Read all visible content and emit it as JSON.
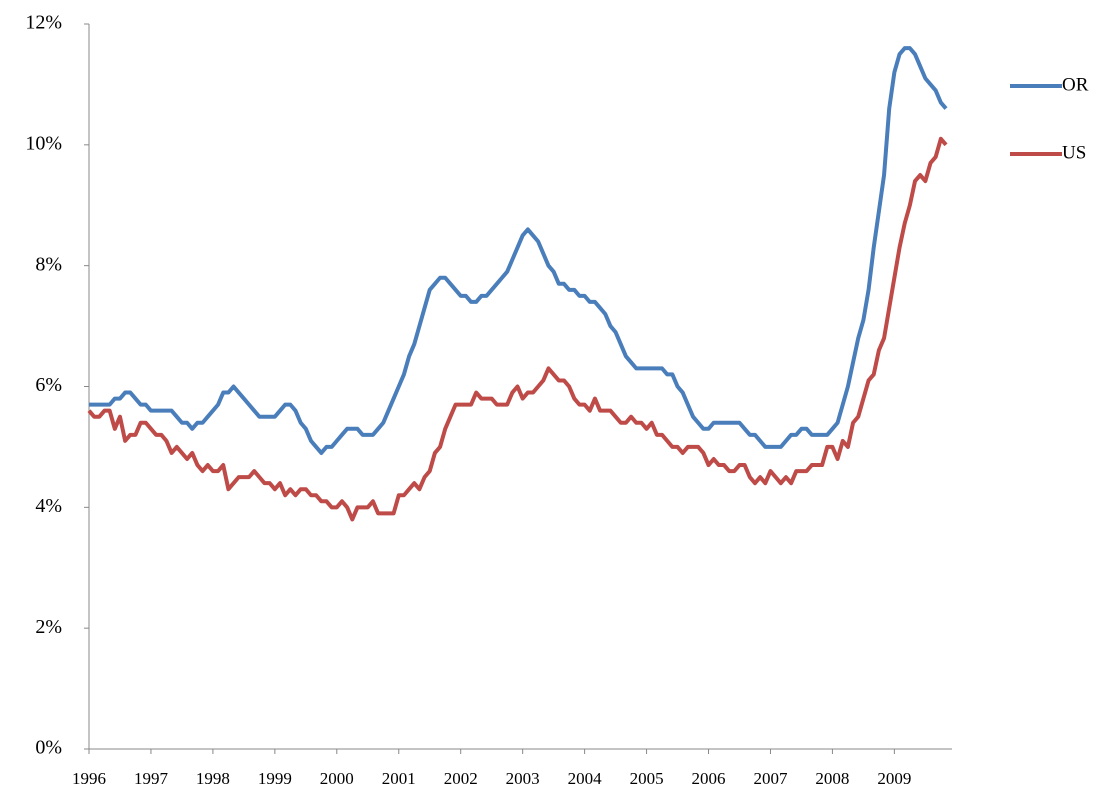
{
  "chart_data": {
    "type": "line",
    "categories": [
      "1996",
      null,
      null,
      null,
      null,
      null,
      null,
      null,
      null,
      null,
      null,
      null,
      "1997",
      null,
      null,
      null,
      null,
      null,
      null,
      null,
      null,
      null,
      null,
      null,
      "1998",
      null,
      null,
      null,
      null,
      null,
      null,
      null,
      null,
      null,
      null,
      null,
      "1999",
      null,
      null,
      null,
      null,
      null,
      null,
      null,
      null,
      null,
      null,
      null,
      "2000",
      null,
      null,
      null,
      null,
      null,
      null,
      null,
      null,
      null,
      null,
      null,
      "2001",
      null,
      null,
      null,
      null,
      null,
      null,
      null,
      null,
      null,
      null,
      null,
      "2002",
      null,
      null,
      null,
      null,
      null,
      null,
      null,
      null,
      null,
      null,
      null,
      "2003",
      null,
      null,
      null,
      null,
      null,
      null,
      null,
      null,
      null,
      null,
      null,
      "2004",
      null,
      null,
      null,
      null,
      null,
      null,
      null,
      null,
      null,
      null,
      null,
      "2005",
      null,
      null,
      null,
      null,
      null,
      null,
      null,
      null,
      null,
      null,
      null,
      "2006",
      null,
      null,
      null,
      null,
      null,
      null,
      null,
      null,
      null,
      null,
      null,
      "2007",
      null,
      null,
      null,
      null,
      null,
      null,
      null,
      null,
      null,
      null,
      null,
      "2008",
      null,
      null,
      null,
      null,
      null,
      null,
      null,
      null,
      null,
      null,
      null,
      "2009",
      null,
      null,
      null,
      null,
      null,
      null,
      null,
      null,
      null,
      null
    ],
    "series": [
      {
        "name": "OR",
        "color": "#4a7ebb",
        "values": [
          5.7,
          5.7,
          5.7,
          5.7,
          5.7,
          5.8,
          5.8,
          5.9,
          5.9,
          5.8,
          5.7,
          5.7,
          5.6,
          5.6,
          5.6,
          5.6,
          5.6,
          5.5,
          5.4,
          5.4,
          5.3,
          5.4,
          5.4,
          5.5,
          5.6,
          5.7,
          5.9,
          5.9,
          6.0,
          5.9,
          5.8,
          5.7,
          5.6,
          5.5,
          5.5,
          5.5,
          5.5,
          5.6,
          5.7,
          5.7,
          5.6,
          5.4,
          5.3,
          5.1,
          5.0,
          4.9,
          5.0,
          5.0,
          5.1,
          5.2,
          5.3,
          5.3,
          5.3,
          5.2,
          5.2,
          5.2,
          5.3,
          5.4,
          5.6,
          5.8,
          6.0,
          6.2,
          6.5,
          6.7,
          7.0,
          7.3,
          7.6,
          7.7,
          7.8,
          7.8,
          7.7,
          7.6,
          7.5,
          7.5,
          7.4,
          7.4,
          7.5,
          7.5,
          7.6,
          7.7,
          7.8,
          7.9,
          8.1,
          8.3,
          8.5,
          8.6,
          8.5,
          8.4,
          8.2,
          8.0,
          7.9,
          7.7,
          7.7,
          7.6,
          7.6,
          7.5,
          7.5,
          7.4,
          7.4,
          7.3,
          7.2,
          7.0,
          6.9,
          6.7,
          6.5,
          6.4,
          6.3,
          6.3,
          6.3,
          6.3,
          6.3,
          6.3,
          6.2,
          6.2,
          6.0,
          5.9,
          5.7,
          5.5,
          5.4,
          5.3,
          5.3,
          5.4,
          5.4,
          5.4,
          5.4,
          5.4,
          5.4,
          5.3,
          5.2,
          5.2,
          5.1,
          5.0,
          5.0,
          5.0,
          5.0,
          5.1,
          5.2,
          5.2,
          5.3,
          5.3,
          5.2,
          5.2,
          5.2,
          5.2,
          5.3,
          5.4,
          5.7,
          6.0,
          6.4,
          6.8,
          7.1,
          7.6,
          8.3,
          8.9,
          9.5,
          10.6,
          11.2,
          11.5,
          11.6,
          11.6,
          11.5,
          11.3,
          11.1,
          11.0,
          10.9,
          10.7,
          10.6
        ]
      },
      {
        "name": "US",
        "color": "#be4b48",
        "values": [
          5.6,
          5.5,
          5.5,
          5.6,
          5.6,
          5.3,
          5.5,
          5.1,
          5.2,
          5.2,
          5.4,
          5.4,
          5.3,
          5.2,
          5.2,
          5.1,
          4.9,
          5.0,
          4.9,
          4.8,
          4.9,
          4.7,
          4.6,
          4.7,
          4.6,
          4.6,
          4.7,
          4.3,
          4.4,
          4.5,
          4.5,
          4.5,
          4.6,
          4.5,
          4.4,
          4.4,
          4.3,
          4.4,
          4.2,
          4.3,
          4.2,
          4.3,
          4.3,
          4.2,
          4.2,
          4.1,
          4.1,
          4.0,
          4.0,
          4.1,
          4.0,
          3.8,
          4.0,
          4.0,
          4.0,
          4.1,
          3.9,
          3.9,
          3.9,
          3.9,
          4.2,
          4.2,
          4.3,
          4.4,
          4.3,
          4.5,
          4.6,
          4.9,
          5.0,
          5.3,
          5.5,
          5.7,
          5.7,
          5.7,
          5.7,
          5.9,
          5.8,
          5.8,
          5.8,
          5.7,
          5.7,
          5.7,
          5.9,
          6.0,
          5.8,
          5.9,
          5.9,
          6.0,
          6.1,
          6.3,
          6.2,
          6.1,
          6.1,
          6.0,
          5.8,
          5.7,
          5.7,
          5.6,
          5.8,
          5.6,
          5.6,
          5.6,
          5.5,
          5.4,
          5.4,
          5.5,
          5.4,
          5.4,
          5.3,
          5.4,
          5.2,
          5.2,
          5.1,
          5.0,
          5.0,
          4.9,
          5.0,
          5.0,
          5.0,
          4.9,
          4.7,
          4.8,
          4.7,
          4.7,
          4.6,
          4.6,
          4.7,
          4.7,
          4.5,
          4.4,
          4.5,
          4.4,
          4.6,
          4.5,
          4.4,
          4.5,
          4.4,
          4.6,
          4.6,
          4.6,
          4.7,
          4.7,
          4.7,
          5.0,
          5.0,
          4.8,
          5.1,
          5.0,
          5.4,
          5.5,
          5.8,
          6.1,
          6.2,
          6.6,
          6.8,
          7.3,
          7.8,
          8.3,
          8.7,
          9.0,
          9.4,
          9.5,
          9.4,
          9.7,
          9.8,
          10.1,
          10.0
        ]
      }
    ],
    "ylim": [
      0,
      12
    ],
    "yticks": [
      {
        "value": 0,
        "label": "0%"
      },
      {
        "value": 2,
        "label": "2%"
      },
      {
        "value": 4,
        "label": "4%"
      },
      {
        "value": 6,
        "label": "6%"
      },
      {
        "value": 8,
        "label": "8%"
      },
      {
        "value": 10,
        "label": "10%"
      },
      {
        "value": 12,
        "label": "12%"
      }
    ],
    "grid": false,
    "legend": "right"
  }
}
